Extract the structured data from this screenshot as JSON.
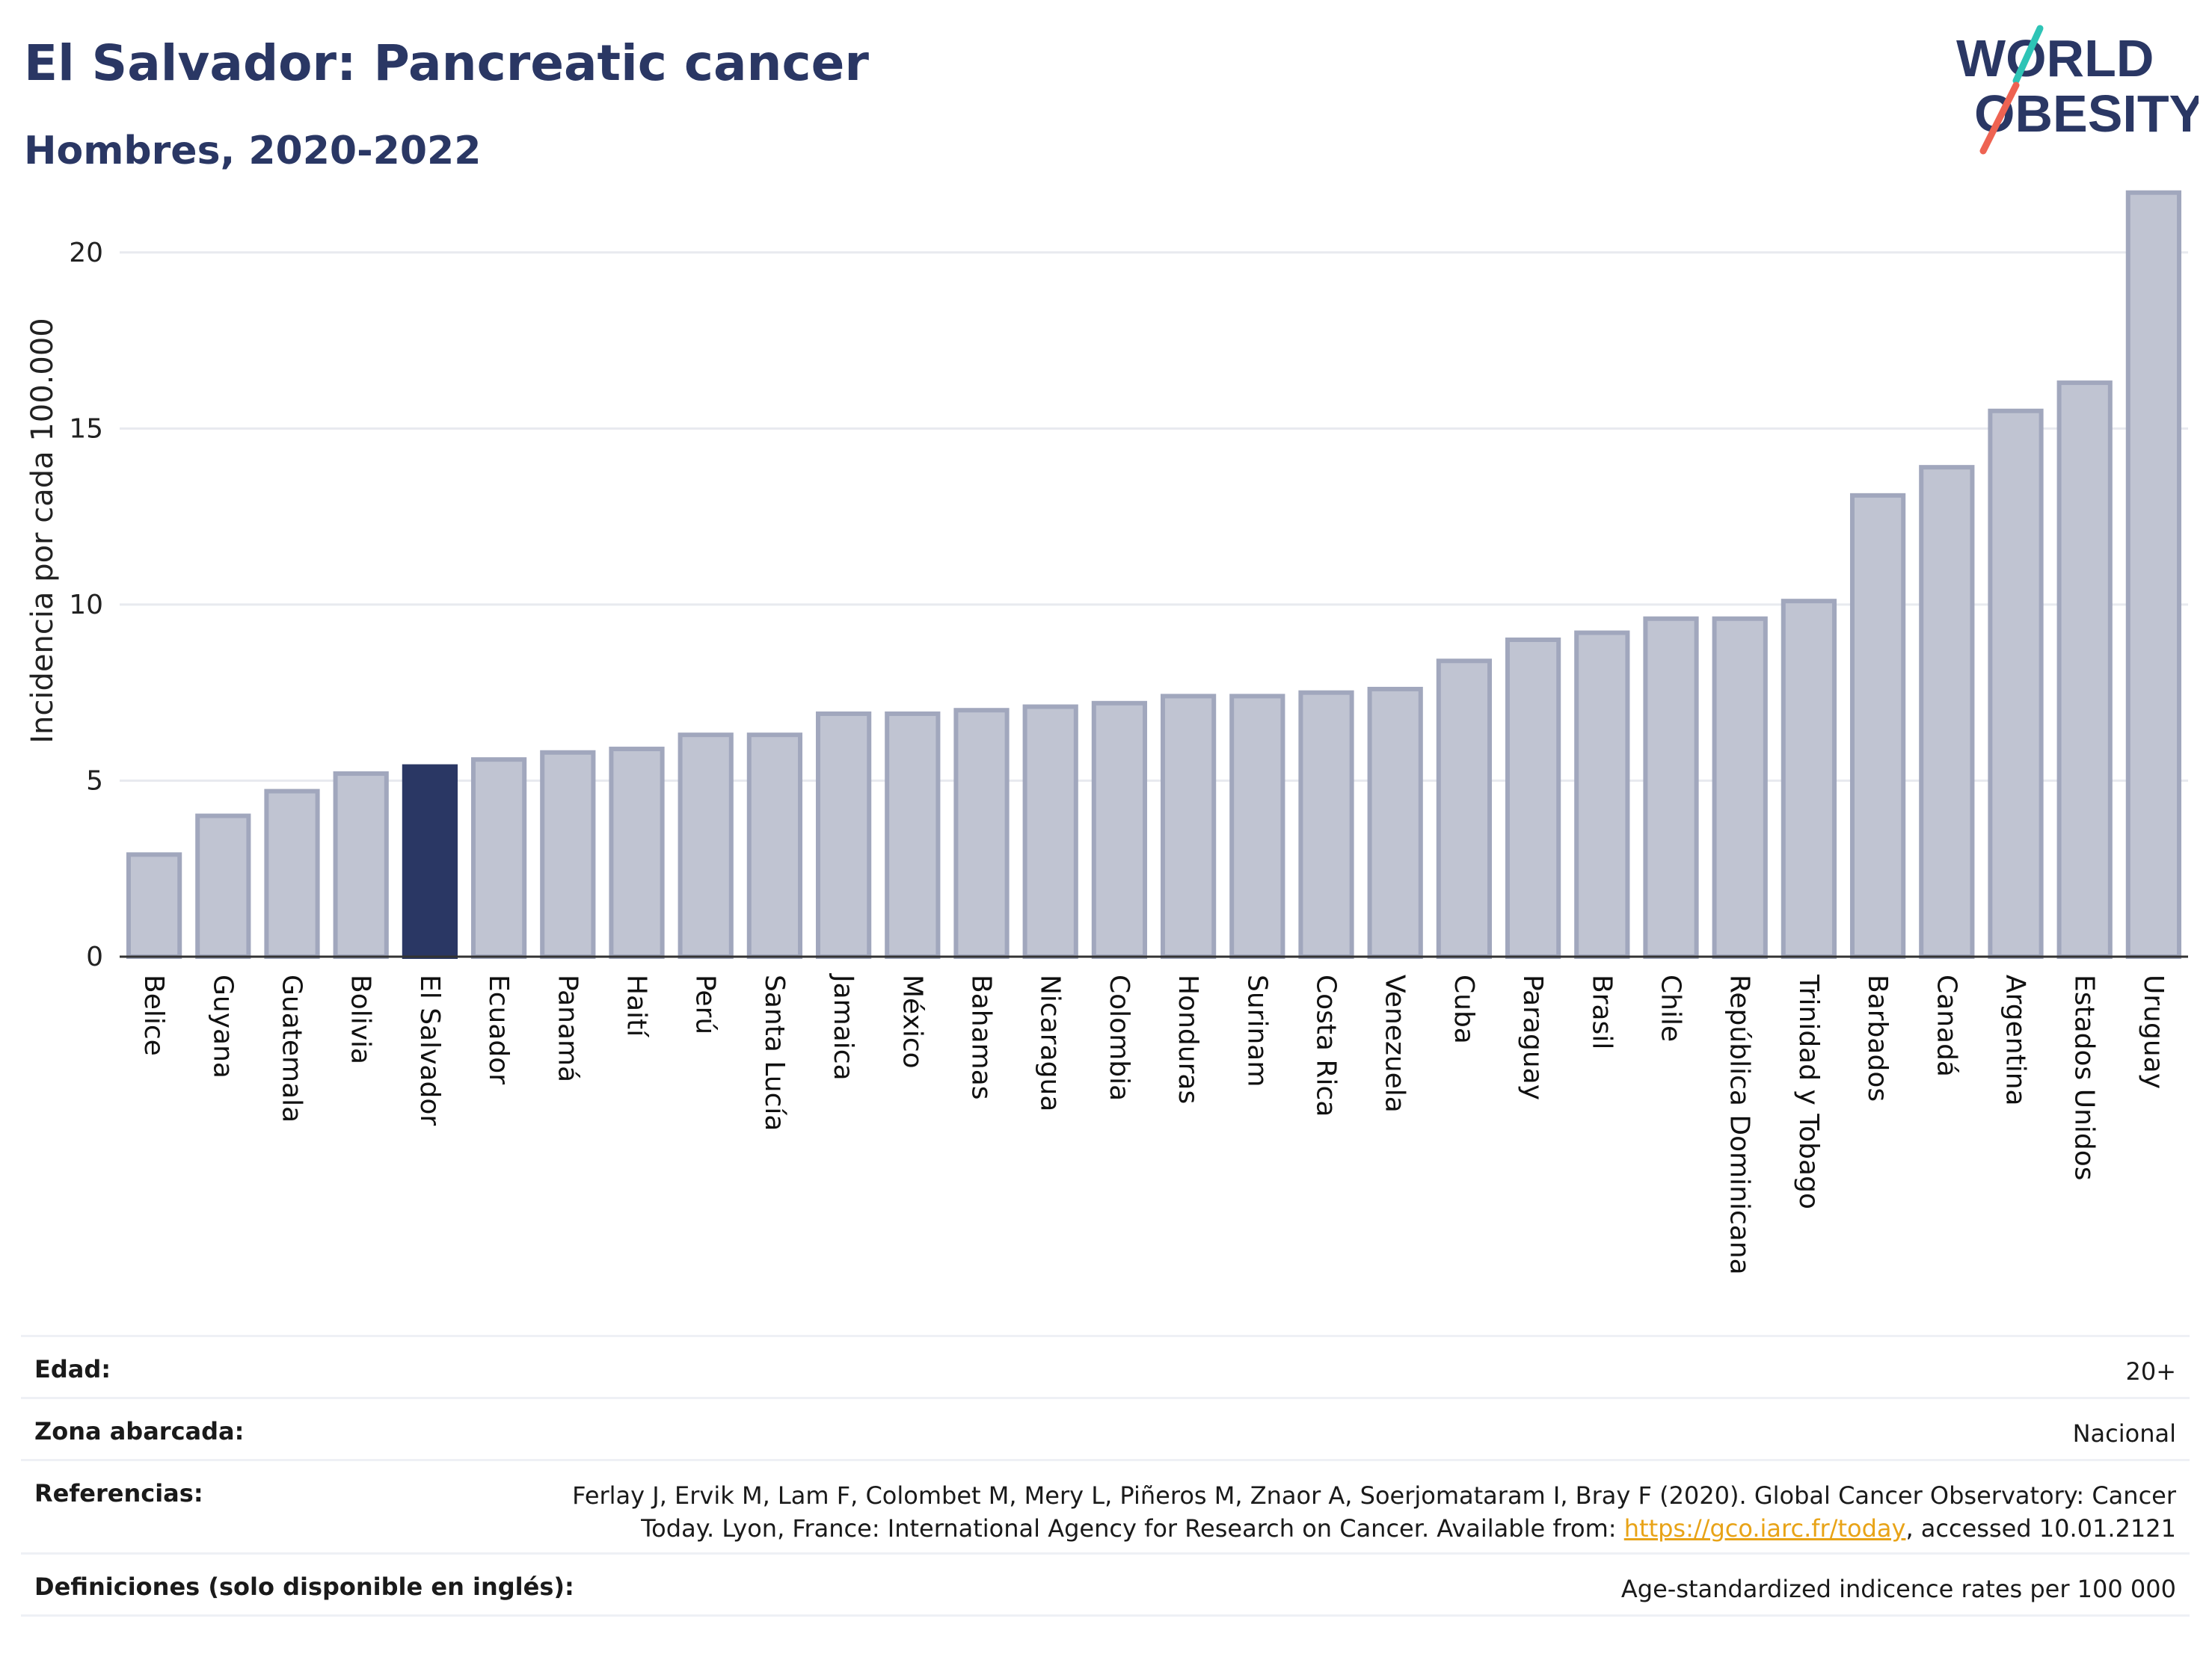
{
  "header": {
    "title": "El Salvador: Pancreatic cancer",
    "subtitle": "Hombres, 2020-2022"
  },
  "logo": {
    "line1": "WORLD",
    "line2": "OBESITY",
    "accent_colors": [
      "#2ec4b6",
      "#ee6352"
    ]
  },
  "colors": {
    "bar": "#c0c4d2",
    "bar_border": "#a1a7bd",
    "highlight": "#2a3764",
    "grid": "#e8eaef"
  },
  "chart_data": {
    "type": "bar",
    "title": "El Salvador: Pancreatic cancer",
    "subtitle": "Hombres, 2020-2022",
    "xlabel": "",
    "ylabel": "Incidencia por cada 100.000",
    "ylim": [
      0,
      22.5
    ],
    "yticks": [
      0,
      5,
      10,
      15,
      20
    ],
    "grid": true,
    "highlight": "El Salvador",
    "categories": [
      "Belice",
      "Guyana",
      "Guatemala",
      "Bolivia",
      "El Salvador",
      "Ecuador",
      "Panamá",
      "Haití",
      "Perú",
      "Santa Lucía",
      "Jamaica",
      "México",
      "Bahamas",
      "Nicaragua",
      "Colombia",
      "Honduras",
      "Surinam",
      "Costa Rica",
      "Venezuela",
      "Cuba",
      "Paraguay",
      "Brasil",
      "Chile",
      "República Dominicana",
      "Trinidad y Tobago",
      "Barbados",
      "Canadá",
      "Argentina",
      "Estados Unidos",
      "Uruguay"
    ],
    "values": [
      2.9,
      4.0,
      4.7,
      5.2,
      5.4,
      5.6,
      5.8,
      5.9,
      6.3,
      6.3,
      6.9,
      6.9,
      7.0,
      7.1,
      7.2,
      7.4,
      7.4,
      7.5,
      7.6,
      8.4,
      9.0,
      9.2,
      9.6,
      9.6,
      10.1,
      13.1,
      13.9,
      15.5,
      16.3,
      21.7
    ]
  },
  "info": {
    "rows": [
      {
        "key": "Edad:",
        "value": "20+"
      },
      {
        "key": "Zona abarcada:",
        "value": "Nacional"
      },
      {
        "key": "Referencias:",
        "value_line1": "Ferlay J, Ervik M, Lam F, Colombet M, Mery L, Piñeros M, Znaor A, Soerjomataram I, Bray F (2020). Global Cancer Observatory: Cancer",
        "value_line2_pre": "Today. Lyon, France: International Agency for Research on Cancer. Available from: ",
        "link": "https://gco.iarc.fr/today",
        "value_line2_post": ", accessed 10.01.2121"
      },
      {
        "key": "Definiciones (solo disponible en inglés):",
        "value": "Age-standardized indicence rates per 100 000"
      }
    ]
  }
}
